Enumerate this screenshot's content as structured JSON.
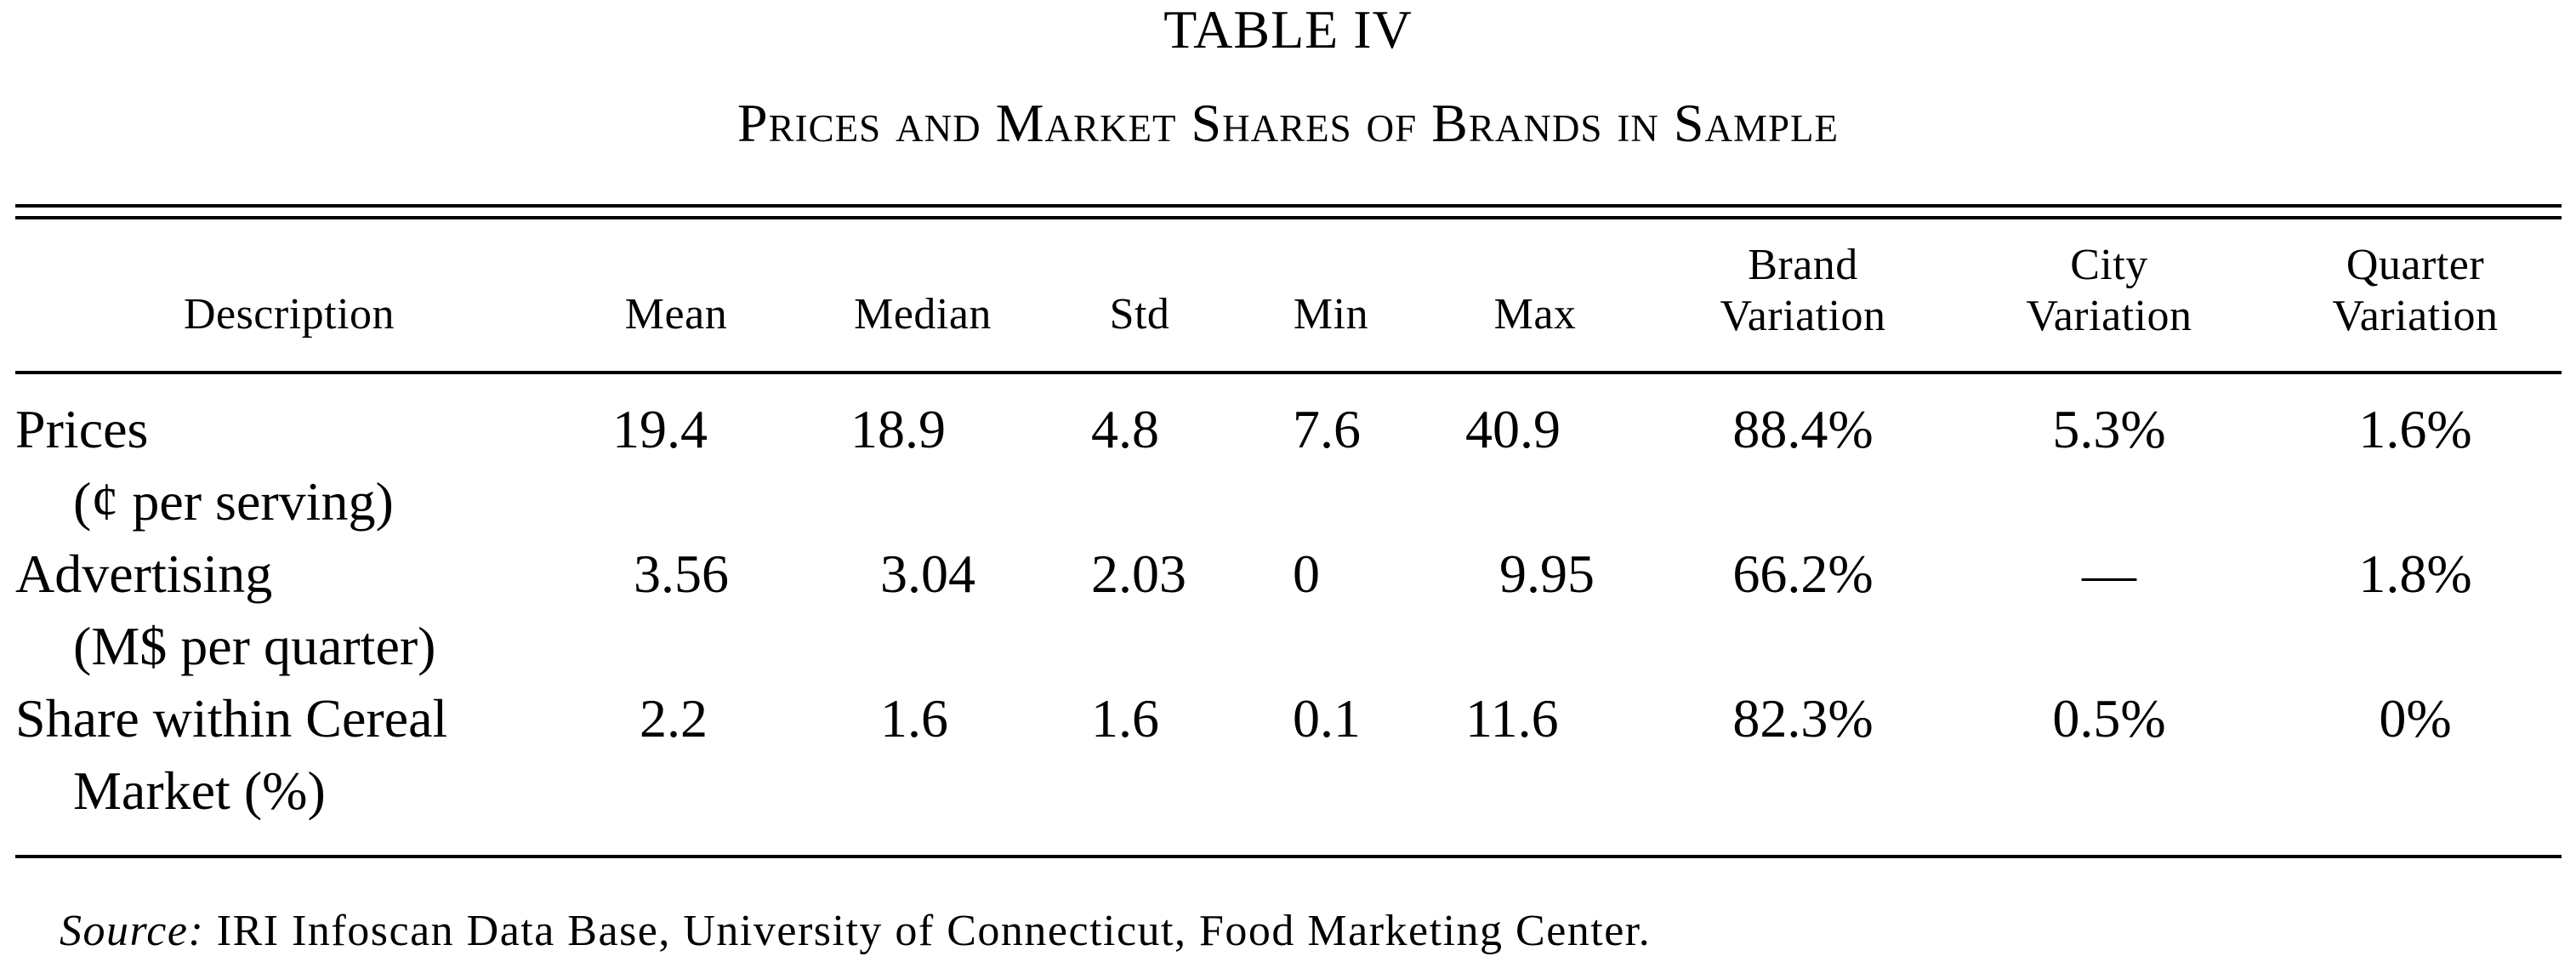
{
  "table_label": "TABLE IV",
  "table_title": "Prices and Market Shares of Brands in Sample",
  "headers": {
    "description": "Description",
    "mean": "Mean",
    "median": "Median",
    "std": "Std",
    "min": "Min",
    "max": "Max",
    "brand_variation_1": "Brand",
    "brand_variation_2": "Variation",
    "city_variation_1": "City",
    "city_variation_2": "Variation",
    "quarter_variation_1": "Quarter",
    "quarter_variation_2": "Variation"
  },
  "rows": [
    {
      "desc_line1": "Prices",
      "desc_line2": "(¢ per serving)",
      "mean": "19.4",
      "median": "18.9",
      "std": "4.8",
      "min": "7.6",
      "max": "40.9",
      "brand_variation": "88.4%",
      "city_variation": "5.3%",
      "quarter_variation": "1.6%"
    },
    {
      "desc_line1": "Advertising",
      "desc_line2": "(M$ per quarter)",
      "mean": "3.56",
      "median": "3.04",
      "std": "2.03",
      "min": "0",
      "max": "9.95",
      "brand_variation": "66.2%",
      "city_variation": "—",
      "quarter_variation": "1.8%"
    },
    {
      "desc_line1": "Share within Cereal",
      "desc_line2": "Market (%)",
      "mean": "2.2",
      "median": "1.6",
      "std": "1.6",
      "min": "0.1",
      "max": "11.6",
      "brand_variation": "82.3%",
      "city_variation": "0.5%",
      "quarter_variation": "0%"
    }
  ],
  "source": {
    "label": "Source:",
    "text": "IRI Infoscan Data Base, University of Connecticut, Food Marketing Center."
  }
}
